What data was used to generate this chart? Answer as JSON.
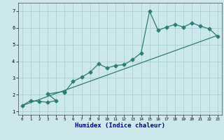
{
  "xlabel": "Humidex (Indice chaleur)",
  "xlim": [
    -0.5,
    23.5
  ],
  "ylim": [
    0.8,
    7.5
  ],
  "xticks": [
    0,
    1,
    2,
    3,
    4,
    5,
    6,
    7,
    8,
    9,
    10,
    11,
    12,
    13,
    14,
    15,
    16,
    17,
    18,
    19,
    20,
    21,
    22,
    23
  ],
  "yticks": [
    1,
    2,
    3,
    4,
    5,
    6,
    7
  ],
  "bg_color": "#cce8ec",
  "line_color": "#2e7d72",
  "grid_color": "#aacfd4",
  "line1_x": [
    0,
    1,
    2,
    3,
    4,
    3,
    5,
    5,
    6,
    7,
    8,
    9,
    10,
    11,
    12,
    13,
    14,
    15,
    16,
    17,
    18,
    19,
    20,
    21,
    22,
    23
  ],
  "line1_y": [
    1.35,
    1.65,
    1.6,
    1.55,
    1.65,
    2.05,
    2.2,
    2.15,
    2.8,
    3.05,
    3.35,
    3.85,
    3.6,
    3.75,
    3.8,
    4.1,
    4.5,
    7.0,
    5.85,
    6.05,
    6.2,
    6.05,
    6.3,
    6.1,
    5.95,
    5.5
  ],
  "trend_x": [
    0,
    23
  ],
  "trend_y": [
    1.35,
    5.55
  ],
  "marker": "D",
  "markersize": 2.5,
  "linewidth": 0.9
}
